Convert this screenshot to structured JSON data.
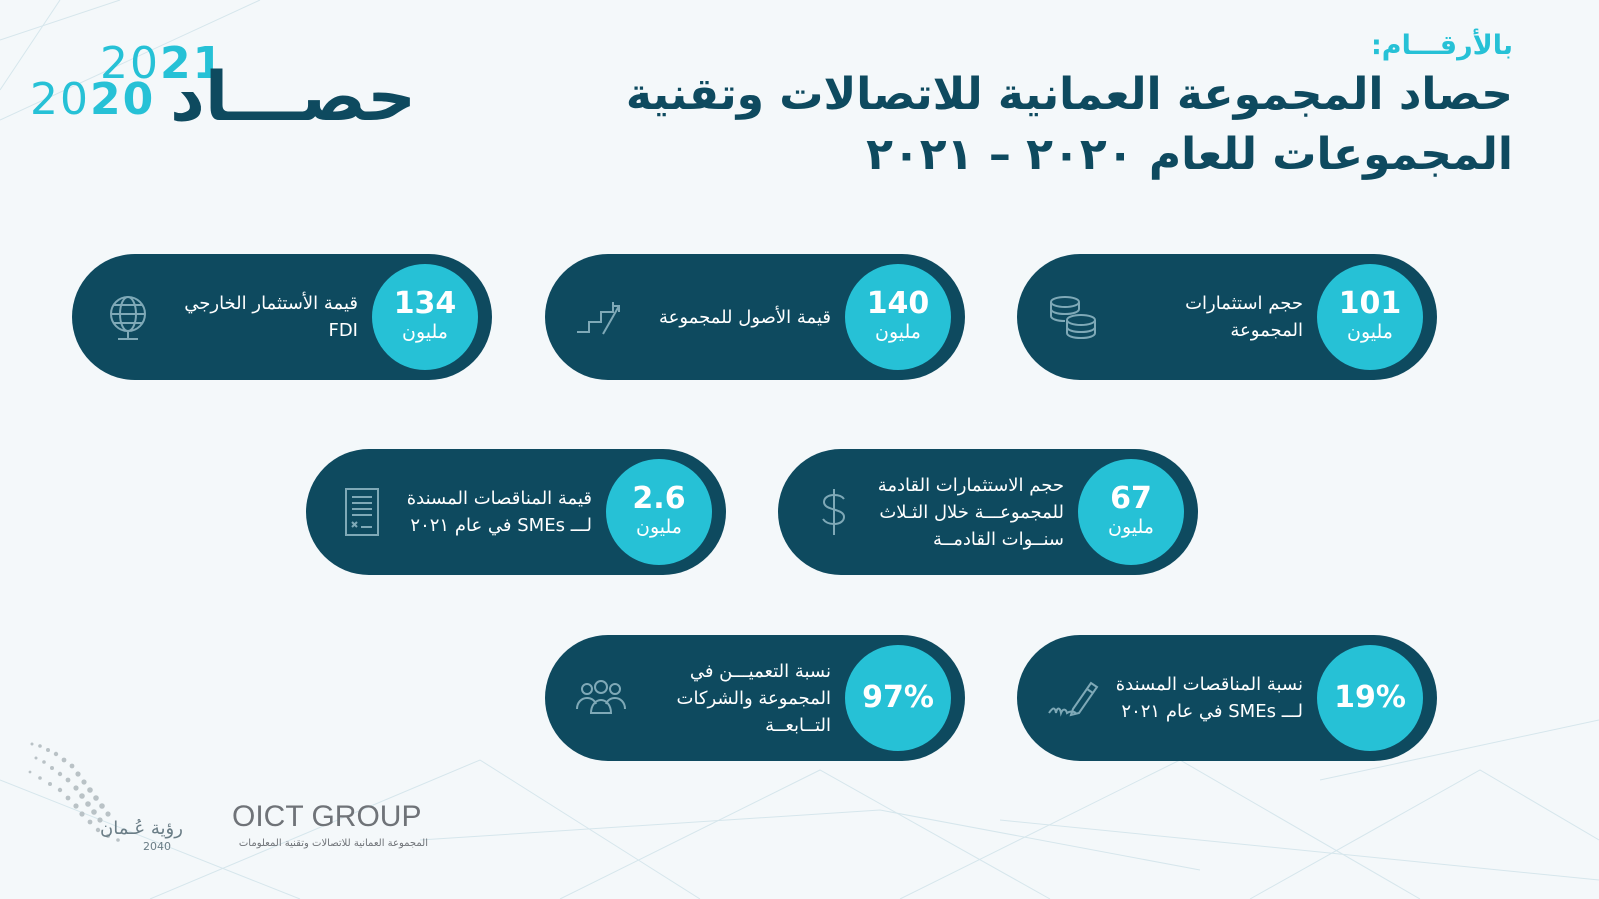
{
  "header": {
    "kicker": "بالأرقـــام:",
    "title_line1": "حصاد المجموعة العمانية للاتصالات وتقنية",
    "title_line2": "المجموعات للعام ٢٠٢٠ – ٢٠٢١"
  },
  "logo": {
    "year_top_a": "20",
    "year_top_b": "21",
    "year_bottom_a": "20",
    "year_bottom_b": "20",
    "word": "حصـــاد"
  },
  "cards": [
    {
      "value": "101",
      "unit": "مليون",
      "line1": "حجم استثمارات",
      "line2": "المجموعة",
      "line3": "",
      "icon": "coins-icon"
    },
    {
      "value": "140",
      "unit": "مليون",
      "line1": "قيمة الأصول للمجموعة",
      "line2": "",
      "line3": "",
      "icon": "growth-stairs-icon"
    },
    {
      "value": "134",
      "unit": "مليون",
      "line1": "قيمة الأستثمار الخارجي",
      "line2": "FDI",
      "line3": "",
      "icon": "globe-icon"
    },
    {
      "value": "67",
      "unit": "مليون",
      "line1": "حجم الاستثمارات القادمة",
      "line2": "للمجموعـــة خلال الثـلاث",
      "line3": "سنــوات القادمــة",
      "icon": "dollar-icon"
    },
    {
      "value": "2.6",
      "unit": "مليون",
      "line1": "قيمة المناقصات المسندة",
      "line2": "لـــ SMEs في عام ٢٠٢١",
      "line3": "",
      "icon": "document-icon"
    },
    {
      "value": "19%",
      "unit": "",
      "line1": "نسبة المناقصات المسندة",
      "line2": "لـــ SMEs في عام ٢٠٢١",
      "line3": "",
      "icon": "signature-pen-icon"
    },
    {
      "value": "97%",
      "unit": "",
      "line1": "نسبة التعميـــن في",
      "line2": "المجموعة والشركات",
      "line3": "التــابعــة",
      "icon": "people-group-icon"
    }
  ],
  "footer": {
    "vision_text": "رؤية عُـمان",
    "vision_year": "2040",
    "company": "OICT GROUP",
    "company_sub": "المجموعة العمانية للاتصالات وتقنية المعلومات"
  },
  "colors": {
    "primary": "#0e4a5f",
    "accent": "#26c1d6",
    "background": "#f4f8fa"
  }
}
